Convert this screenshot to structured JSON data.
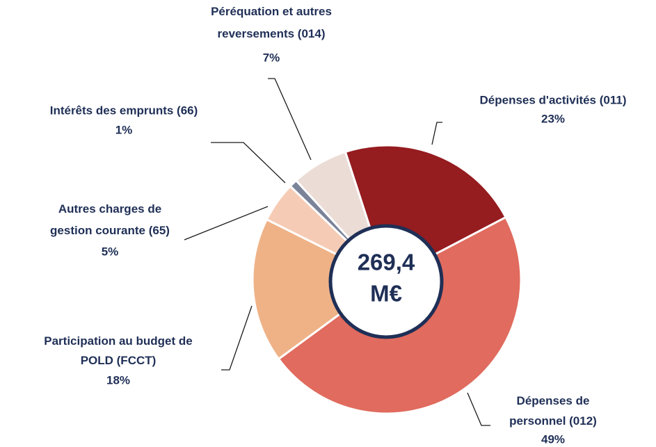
{
  "chart_data": {
    "type": "donut",
    "categories": [
      "Dépenses d'activités (011)",
      "Dépenses de personnel (012)",
      "Participation au budget de POLD (FCCT)",
      "Autres charges de gestion courante (65)",
      "Intérêts des emprunts (66)",
      "Péréquation et autres reversements (014)"
    ],
    "values": [
      23,
      49,
      18,
      5,
      1,
      7
    ],
    "value_labels": [
      "23%",
      "49%",
      "18%",
      "5%",
      "1%",
      "7%"
    ],
    "colors": [
      "#951c1f",
      "#e06b5e",
      "#efb287",
      "#f6cbb5",
      "#7b8399",
      "#ebdcd6"
    ],
    "center_label": [
      "269,4",
      "M€"
    ]
  }
}
